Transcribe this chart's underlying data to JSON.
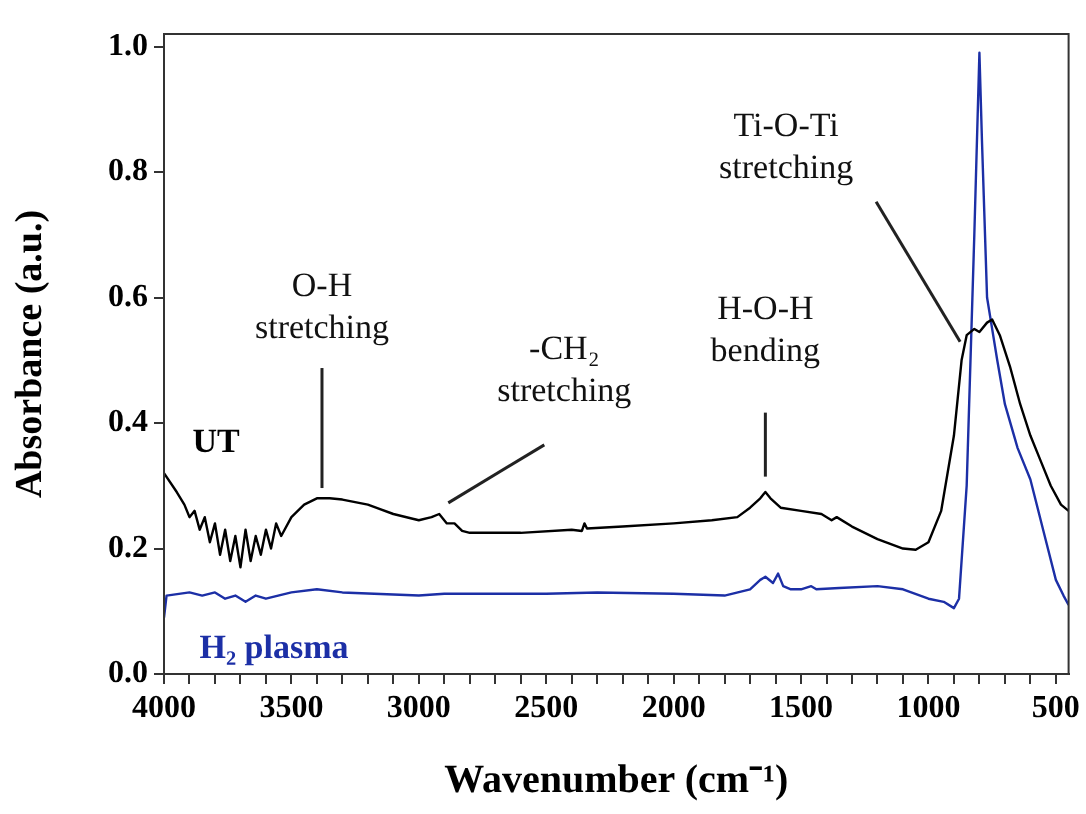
{
  "chart_data": {
    "type": "line",
    "xlabel": "Wavenumber (cm⁻¹)",
    "ylabel": "Absorbance (a.u.)",
    "xlim": [
      4000,
      450
    ],
    "ylim": [
      0,
      1.02
    ],
    "xticks": [
      4000,
      {
        "value": 3900,
        "label": null
      },
      {
        "value": 3800,
        "label": null
      },
      {
        "value": 3700,
        "label": null
      },
      {
        "value": 3600,
        "label": null
      },
      3500,
      {
        "value": 3400,
        "label": null
      },
      {
        "value": 3300,
        "label": null
      },
      {
        "value": 3200,
        "label": null
      },
      {
        "value": 3100,
        "label": null
      },
      3000,
      {
        "value": 2900,
        "label": null
      },
      {
        "value": 2800,
        "label": null
      },
      {
        "value": 2700,
        "label": null
      },
      {
        "value": 2600,
        "label": null
      },
      2500,
      {
        "value": 2400,
        "label": null
      },
      {
        "value": 2300,
        "label": null
      },
      {
        "value": 2200,
        "label": null
      },
      {
        "value": 2100,
        "label": null
      },
      2000,
      {
        "value": 1900,
        "label": null
      },
      {
        "value": 1800,
        "label": null
      },
      {
        "value": 1700,
        "label": null
      },
      {
        "value": 1600,
        "label": null
      },
      1500,
      {
        "value": 1400,
        "label": null
      },
      {
        "value": 1300,
        "label": null
      },
      {
        "value": 1200,
        "label": null
      },
      {
        "value": 1100,
        "label": null
      },
      1000,
      {
        "value": 900,
        "label": null
      },
      {
        "value": 800,
        "label": null
      },
      {
        "value": 700,
        "label": null
      },
      {
        "value": 600,
        "label": null
      },
      500
    ],
    "yticks": [
      {
        "value": 0,
        "label": "0.0"
      },
      {
        "value": 0.2,
        "label": "0.2"
      },
      {
        "value": 0.4,
        "label": "0.4"
      },
      {
        "value": 0.6,
        "label": "0.6"
      },
      {
        "value": 0.8,
        "label": "0.8"
      },
      {
        "value": 1,
        "label": "1.0"
      }
    ],
    "grid": false,
    "series": [
      {
        "name": "UT",
        "color": "#000000",
        "x": [
          4000,
          3950,
          3920,
          3900,
          3880,
          3860,
          3840,
          3820,
          3800,
          3780,
          3760,
          3740,
          3720,
          3700,
          3680,
          3660,
          3640,
          3620,
          3600,
          3580,
          3560,
          3540,
          3500,
          3450,
          3400,
          3350,
          3300,
          3200,
          3100,
          3000,
          2950,
          2920,
          2890,
          2860,
          2830,
          2800,
          2600,
          2400,
          2360,
          2350,
          2340,
          2200,
          2000,
          1850,
          1750,
          1700,
          1660,
          1640,
          1620,
          1580,
          1500,
          1420,
          1380,
          1360,
          1300,
          1200,
          1100,
          1050,
          1000,
          950,
          900,
          870,
          850,
          820,
          800,
          770,
          750,
          720,
          680,
          640,
          600,
          560,
          520,
          480,
          450
        ],
        "values": [
          0.32,
          0.29,
          0.27,
          0.25,
          0.26,
          0.23,
          0.25,
          0.21,
          0.24,
          0.19,
          0.23,
          0.18,
          0.22,
          0.17,
          0.23,
          0.18,
          0.22,
          0.19,
          0.23,
          0.2,
          0.24,
          0.22,
          0.25,
          0.27,
          0.28,
          0.28,
          0.278,
          0.27,
          0.255,
          0.245,
          0.25,
          0.255,
          0.24,
          0.24,
          0.228,
          0.225,
          0.225,
          0.23,
          0.228,
          0.24,
          0.232,
          0.235,
          0.24,
          0.245,
          0.25,
          0.265,
          0.28,
          0.29,
          0.28,
          0.265,
          0.26,
          0.255,
          0.245,
          0.25,
          0.235,
          0.215,
          0.2,
          0.198,
          0.21,
          0.26,
          0.38,
          0.5,
          0.54,
          0.55,
          0.545,
          0.56,
          0.565,
          0.54,
          0.49,
          0.43,
          0.38,
          0.34,
          0.3,
          0.27,
          0.26
        ]
      },
      {
        "name": "H₂ plasma",
        "color": "#1c2fa6",
        "x": [
          4000,
          3990,
          3900,
          3850,
          3800,
          3760,
          3720,
          3680,
          3640,
          3600,
          3500,
          3400,
          3300,
          3000,
          2900,
          2500,
          2300,
          2000,
          1800,
          1700,
          1660,
          1640,
          1610,
          1590,
          1570,
          1540,
          1500,
          1460,
          1440,
          1350,
          1200,
          1100,
          1000,
          940,
          900,
          880,
          850,
          820,
          800,
          790,
          770,
          750,
          730,
          700,
          650,
          600,
          550,
          500,
          470,
          450
        ],
        "values": [
          0.09,
          0.125,
          0.13,
          0.125,
          0.13,
          0.12,
          0.125,
          0.115,
          0.125,
          0.12,
          0.13,
          0.135,
          0.13,
          0.125,
          0.128,
          0.128,
          0.13,
          0.128,
          0.125,
          0.135,
          0.15,
          0.155,
          0.145,
          0.16,
          0.14,
          0.135,
          0.135,
          0.14,
          0.135,
          0.137,
          0.14,
          0.135,
          0.12,
          0.115,
          0.105,
          0.12,
          0.3,
          0.7,
          0.99,
          0.85,
          0.6,
          0.55,
          0.5,
          0.43,
          0.36,
          0.31,
          0.23,
          0.15,
          0.125,
          0.11
        ]
      }
    ],
    "annotations": [
      {
        "text": "O-H stretching",
        "x": 3380,
        "y": 0.29
      },
      {
        "text": "-CH₂ stretching",
        "x": 2900,
        "y": 0.26
      },
      {
        "text": "H-O-H bending",
        "x": 1640,
        "y": 0.305
      },
      {
        "text": "Ti-O-Ti stretching",
        "x": 860,
        "y": 0.52
      }
    ]
  }
}
